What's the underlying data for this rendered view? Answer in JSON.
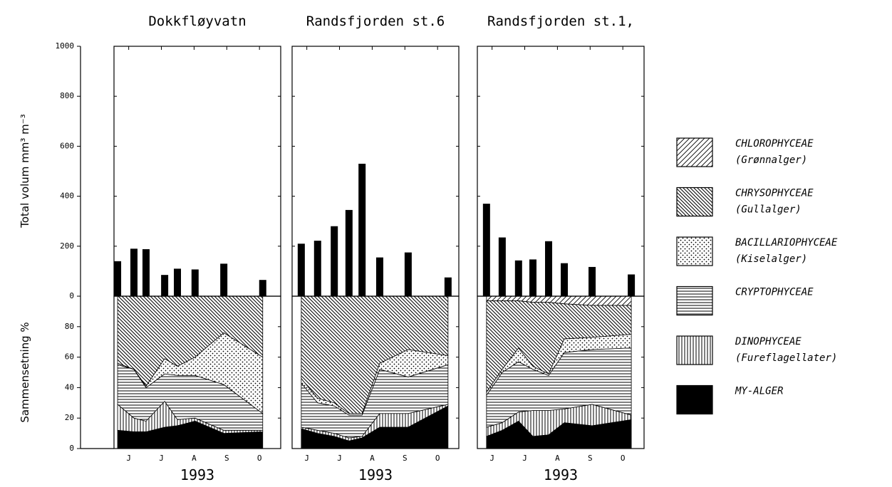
{
  "chart_data": {
    "type": "bar_area_panels",
    "ylabel": "Total volum mm³ m⁻³",
    "ylim": [
      0,
      1000
    ],
    "yticks": [
      0,
      200,
      400,
      600,
      800,
      1000
    ],
    "y2label": "Sammensetning %",
    "y2lim": [
      0,
      100
    ],
    "y2ticks": [
      0,
      20,
      40,
      60,
      80
    ],
    "xlim": [
      5.55,
      10.65
    ],
    "xticks": [
      {
        "value": 6,
        "label": "J"
      },
      {
        "value": 7,
        "label": "J"
      },
      {
        "value": 8,
        "label": "A"
      },
      {
        "value": 9,
        "label": "S"
      },
      {
        "value": 10,
        "label": "O"
      }
    ],
    "xlabel": "1993",
    "bar_color": "#000000",
    "series": [
      {
        "name": "CHLOROPHYCEAE",
        "subname": "(Grønnalger)",
        "pattern": "hatch-fwd"
      },
      {
        "name": "CHRYSOPHYCEAE",
        "subname": "(Gullalger)",
        "pattern": "hatch-back"
      },
      {
        "name": "BACILLARIOPHYCEAE",
        "subname": "(Kiselalger)",
        "pattern": "dots"
      },
      {
        "name": "CRYPTOPHYCEAE",
        "pattern": "horizontal"
      },
      {
        "name": "DINOPHYCEAE",
        "subname": "(Fureflagellater)",
        "pattern": "vertical"
      },
      {
        "name": "MY-ALGER",
        "pattern": "solid"
      }
    ],
    "panels": [
      {
        "title": "Dokkfløyvatn",
        "x": [
          5.66,
          6.16,
          6.53,
          7.1,
          7.49,
          8.03,
          8.91,
          10.1
        ],
        "values": [
          140,
          190,
          188,
          85,
          110,
          107,
          130,
          65
        ],
        "composition": [
          [
            0,
            0,
            0,
            0,
            0,
            0,
            0,
            0
          ],
          [
            44,
            48,
            59,
            41,
            46,
            40,
            24,
            40
          ],
          [
            1,
            0,
            1,
            10,
            6,
            12,
            34,
            37
          ],
          [
            26,
            32,
            22,
            18,
            29,
            28,
            30,
            11
          ],
          [
            17,
            9,
            7,
            17,
            4,
            2,
            2,
            1
          ],
          [
            12,
            11,
            11,
            14,
            15,
            18,
            10,
            11
          ]
        ]
      },
      {
        "title": "Randsfjorden st.6",
        "x": [
          5.83,
          6.33,
          6.84,
          7.29,
          7.69,
          8.23,
          9.1,
          10.32
        ],
        "values": [
          210,
          222,
          280,
          345,
          530,
          155,
          175,
          75
        ],
        "composition": [
          [
            0,
            0,
            0,
            0,
            0,
            0,
            0,
            0
          ],
          [
            54,
            67,
            70,
            77,
            77,
            44,
            35,
            39
          ],
          [
            3,
            3,
            2,
            1,
            1,
            4,
            18,
            6
          ],
          [
            29,
            18,
            18,
            15,
            14,
            29,
            24,
            26
          ],
          [
            1,
            2,
            2,
            2,
            1,
            9,
            9,
            1
          ],
          [
            13,
            10,
            8,
            5,
            7,
            14,
            14,
            28
          ]
        ]
      },
      {
        "title": "Randsfjorden st.1,",
        "x": [
          5.83,
          6.31,
          6.81,
          7.25,
          7.73,
          8.21,
          9.06,
          10.26
        ],
        "values": [
          370,
          235,
          143,
          147,
          220,
          132,
          117,
          87
        ],
        "composition": [
          [
            3,
            3,
            3,
            4,
            4,
            5,
            6,
            6
          ],
          [
            60,
            45,
            31,
            42,
            47,
            23,
            21,
            19
          ],
          [
            2,
            2,
            9,
            2,
            1,
            9,
            8,
            9
          ],
          [
            21,
            33,
            33,
            27,
            23,
            37,
            36,
            44
          ],
          [
            6,
            5,
            6,
            17,
            16,
            9,
            14,
            3
          ],
          [
            8,
            12,
            18,
            8,
            9,
            17,
            15,
            19
          ]
        ]
      }
    ]
  }
}
